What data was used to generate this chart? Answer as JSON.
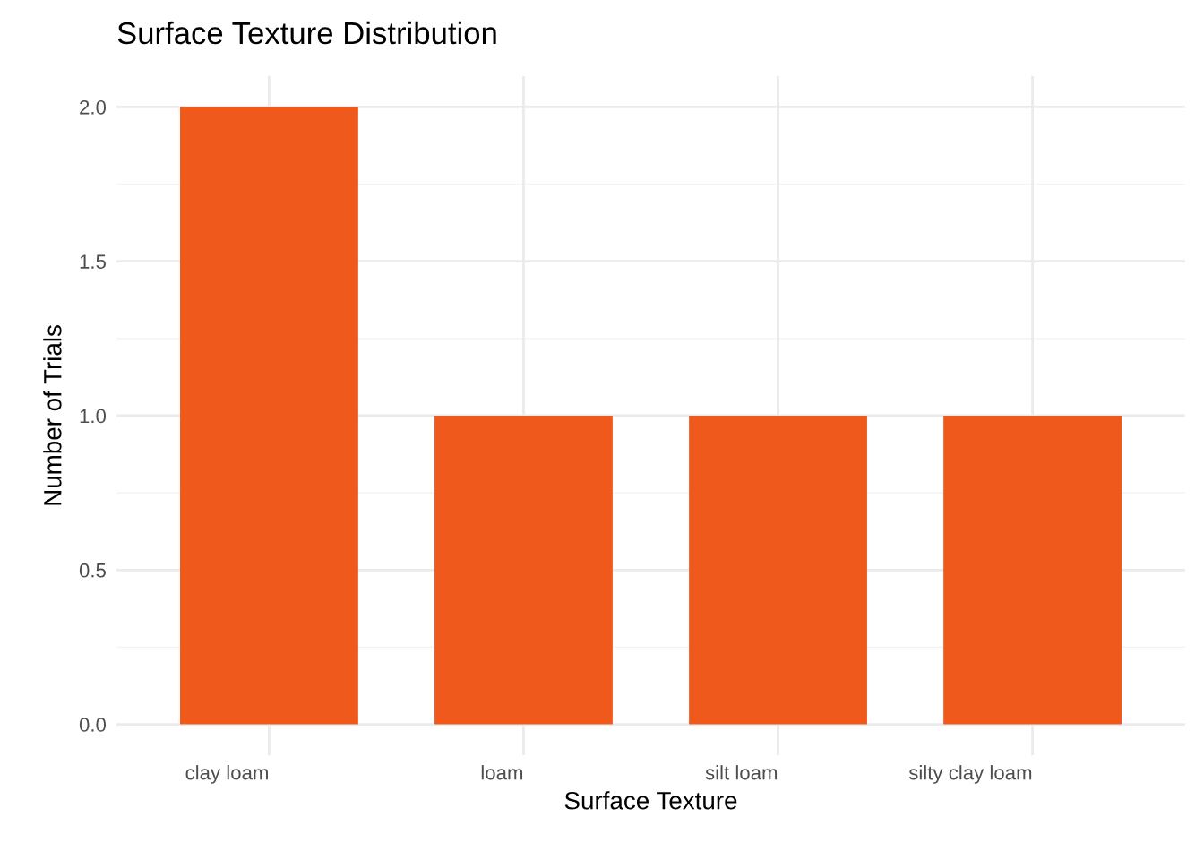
{
  "chart_data": {
    "type": "bar",
    "title": "Surface Texture Distribution",
    "xlabel": "Surface Texture",
    "ylabel": "Number of Trials",
    "categories": [
      "clay loam",
      "loam",
      "silt loam",
      "silty clay loam"
    ],
    "values": [
      2,
      1,
      1,
      1
    ],
    "color": "#ef5a1c",
    "ylim": [
      -0.1,
      2.1
    ],
    "yticks": [
      {
        "value": 0,
        "label": "0.0"
      },
      {
        "value": 0.5,
        "label": "0.5"
      },
      {
        "value": 1,
        "label": "1.0"
      },
      {
        "value": 1.5,
        "label": "1.5"
      },
      {
        "value": 2,
        "label": "2.0"
      }
    ],
    "grid": true
  }
}
